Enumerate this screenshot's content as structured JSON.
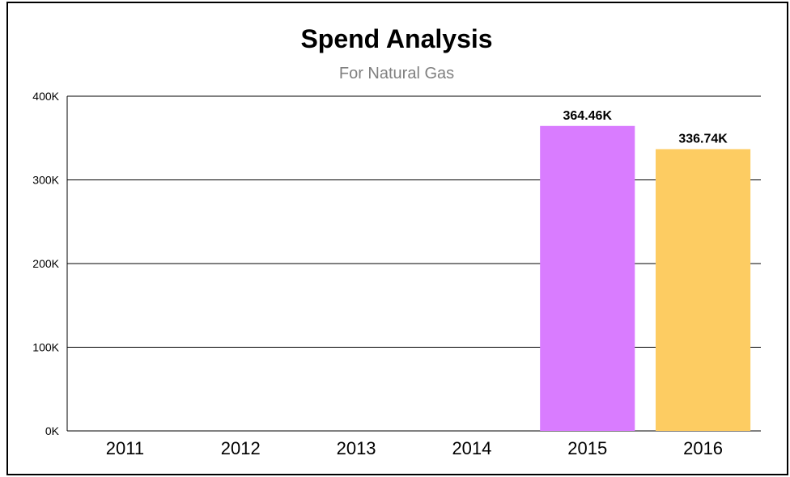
{
  "chart_data": {
    "type": "bar",
    "title": "Spend Analysis",
    "subtitle": "For Natural Gas",
    "categories": [
      "2011",
      "2012",
      "2013",
      "2014",
      "2015",
      "2016"
    ],
    "values": [
      0,
      0,
      0,
      0,
      364.46,
      336.74
    ],
    "data_labels": [
      "",
      "",
      "",
      "",
      "364.46K",
      "336.74K"
    ],
    "bar_colors": [
      "#d97cff",
      "#d97cff",
      "#d97cff",
      "#d97cff",
      "#d97cff",
      "#fdcc62"
    ],
    "ylim": [
      0,
      400
    ],
    "yticks": [
      0,
      100,
      200,
      300,
      400
    ],
    "ytick_labels": [
      "0K",
      "100K",
      "200K",
      "300K",
      "400K"
    ],
    "grid": true,
    "xlabel": "",
    "ylabel": ""
  }
}
